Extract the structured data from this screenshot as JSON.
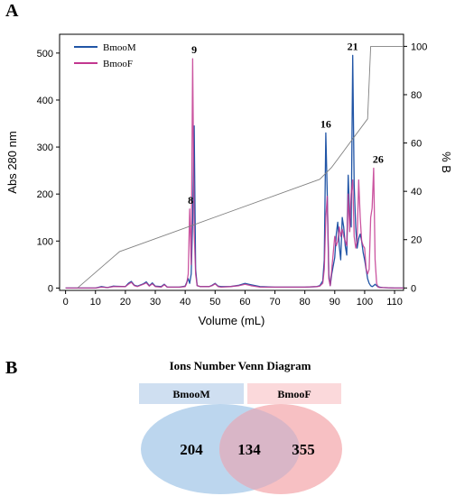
{
  "chart_data": [
    {
      "type": "line",
      "panel": "A",
      "xlabel": "Volume (mL)",
      "ylabel": "Abs 280 nm",
      "y2label": "% B",
      "xlim": [
        -2,
        113
      ],
      "ylim": [
        -5,
        540
      ],
      "y2lim": [
        -1,
        105
      ],
      "xticks": [
        0,
        10,
        20,
        30,
        40,
        50,
        60,
        70,
        80,
        90,
        100,
        110
      ],
      "yticks": [
        0,
        100,
        200,
        300,
        400,
        500
      ],
      "y2ticks": [
        0,
        20,
        40,
        60,
        80,
        100
      ],
      "grid": false,
      "legend_position": "top-left",
      "series": [
        {
          "name": "BmooM",
          "color": "#2155a6",
          "x": [
            0,
            10,
            12,
            14,
            16,
            20,
            21,
            22,
            23,
            24,
            26,
            27,
            28,
            29,
            30,
            32,
            33,
            34,
            38,
            40,
            40.5,
            41,
            41.5,
            42,
            42.5,
            43,
            43.5,
            44,
            45,
            48,
            49,
            50,
            51,
            52,
            55,
            58,
            60,
            62,
            65,
            70,
            75,
            80,
            84,
            85,
            86,
            86.5,
            87,
            87.5,
            88,
            88.5,
            89,
            90,
            90.5,
            91,
            91.5,
            92,
            92.5,
            93,
            93.5,
            94,
            94.5,
            95,
            95.5,
            96,
            96.5,
            97,
            97.5,
            98,
            98.5,
            99,
            99.5,
            100,
            100.5,
            101,
            101.5,
            102,
            102.5,
            103,
            103.5,
            104,
            104.5,
            105,
            106,
            110,
            113
          ],
          "y": [
            0,
            0,
            3,
            1,
            4,
            3,
            10,
            14,
            6,
            4,
            9,
            13,
            5,
            11,
            4,
            3,
            8,
            2,
            2,
            4,
            12,
            20,
            10,
            30,
            145,
            345,
            40,
            5,
            3,
            3,
            6,
            10,
            4,
            3,
            3,
            6,
            10,
            7,
            3,
            2,
            2,
            2,
            3,
            5,
            15,
            60,
            330,
            200,
            30,
            5,
            30,
            65,
            115,
            140,
            90,
            60,
            150,
            130,
            90,
            70,
            240,
            150,
            130,
            495,
            220,
            130,
            85,
            105,
            115,
            100,
            75,
            60,
            40,
            20,
            10,
            5,
            3,
            5,
            8,
            5,
            3,
            2,
            1,
            0,
            0
          ]
        },
        {
          "name": "BmooF",
          "color": "#c2378f",
          "x": [
            0,
            10,
            12,
            14,
            16,
            20,
            21,
            22,
            23,
            24,
            26,
            27,
            28,
            29,
            30,
            32,
            33,
            34,
            38,
            40,
            40.5,
            41,
            41.5,
            42,
            42.5,
            43,
            43.5,
            44,
            45,
            48,
            49,
            50,
            51,
            52,
            55,
            58,
            60,
            62,
            65,
            70,
            75,
            80,
            84,
            85,
            86,
            86.5,
            87,
            87.5,
            88,
            88.5,
            89,
            90,
            90.5,
            91,
            91.5,
            92,
            92.5,
            93,
            93.5,
            94,
            94.5,
            95,
            95.5,
            96,
            96.5,
            97,
            97.5,
            98,
            98.5,
            99,
            99.5,
            100,
            100.5,
            101,
            101.5,
            102,
            102.5,
            103,
            103.5,
            104,
            104.5,
            105,
            106,
            110,
            113
          ],
          "y": [
            0,
            0,
            2,
            1,
            3,
            3,
            8,
            12,
            5,
            3,
            8,
            11,
            4,
            9,
            3,
            2,
            7,
            2,
            2,
            3,
            10,
            30,
            168,
            50,
            488,
            120,
            30,
            5,
            3,
            3,
            5,
            9,
            3,
            2,
            3,
            5,
            8,
            5,
            2,
            2,
            2,
            2,
            3,
            4,
            10,
            40,
            150,
            195,
            20,
            5,
            40,
            110,
            90,
            100,
            130,
            110,
            125,
            110,
            100,
            90,
            200,
            120,
            200,
            230,
            110,
            85,
            100,
            230,
            150,
            100,
            90,
            85,
            40,
            30,
            40,
            150,
            170,
            255,
            60,
            10,
            2,
            1,
            1,
            0,
            0
          ]
        },
        {
          "name": "",
          "color": "#808080",
          "axis": "y2",
          "x": [
            4,
            18,
            85,
            89,
            101,
            102,
            113
          ],
          "y": [
            0,
            15,
            45,
            50,
            70,
            100,
            100
          ]
        }
      ],
      "annotations": [
        {
          "text": "8",
          "x": 41.8,
          "y": 168
        },
        {
          "text": "9",
          "x": 43,
          "y": 488
        },
        {
          "text": "16",
          "x": 87,
          "y": 330
        },
        {
          "text": "21",
          "x": 96,
          "y": 495
        },
        {
          "text": "26",
          "x": 104.5,
          "y": 255
        }
      ]
    },
    {
      "type": "venn",
      "panel": "B",
      "title": "Ions Number Venn Diagram",
      "sets": [
        {
          "name": "BmooM",
          "only": 204,
          "color": "#bcd6ee",
          "label_bg": "#cfdff1"
        },
        {
          "name": "BmooF",
          "only": 355,
          "color": "#f7c0c3",
          "label_bg": "#fbd9db"
        }
      ],
      "intersection": 134,
      "intersection_color": "#d9b6c7"
    }
  ]
}
